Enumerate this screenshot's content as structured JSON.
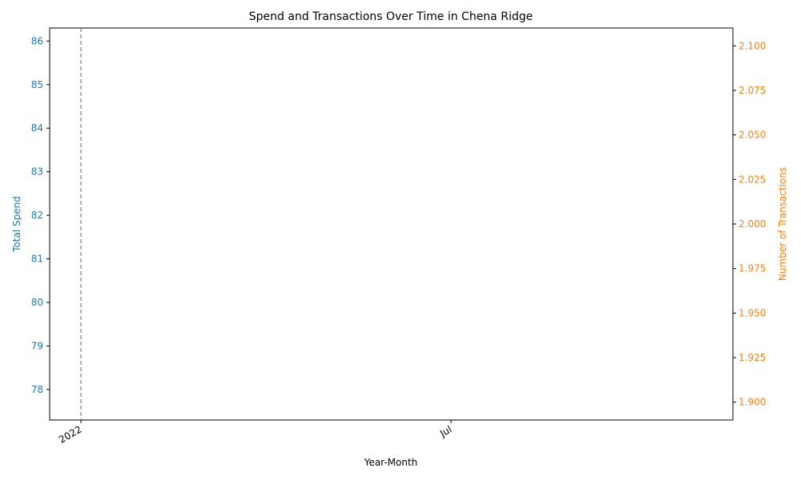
{
  "chart_data": {
    "type": "line",
    "title": "Spend and Transactions Over Time in Chena Ridge",
    "xlabel": "Year-Month",
    "x_tick_labels": [
      "2022",
      "Jul"
    ],
    "left_axis": {
      "label": "Total Spend",
      "color": "#1f77b4",
      "ylim": [
        77.3,
        86.3
      ],
      "ticks": [
        78,
        79,
        80,
        81,
        82,
        83,
        84,
        85,
        86
      ]
    },
    "right_axis": {
      "label": "Number of Transactions",
      "color": "#ff7f0e",
      "ylim": [
        1.89,
        2.11
      ],
      "ticks": [
        "1.900",
        "1.925",
        "1.950",
        "1.975",
        "2.000",
        "2.025",
        "2.050",
        "2.075",
        "2.100"
      ]
    },
    "vertical_reference_line": {
      "x": "2022",
      "style": "dashed",
      "color": "#808080"
    },
    "grid": false,
    "legend": "none"
  }
}
